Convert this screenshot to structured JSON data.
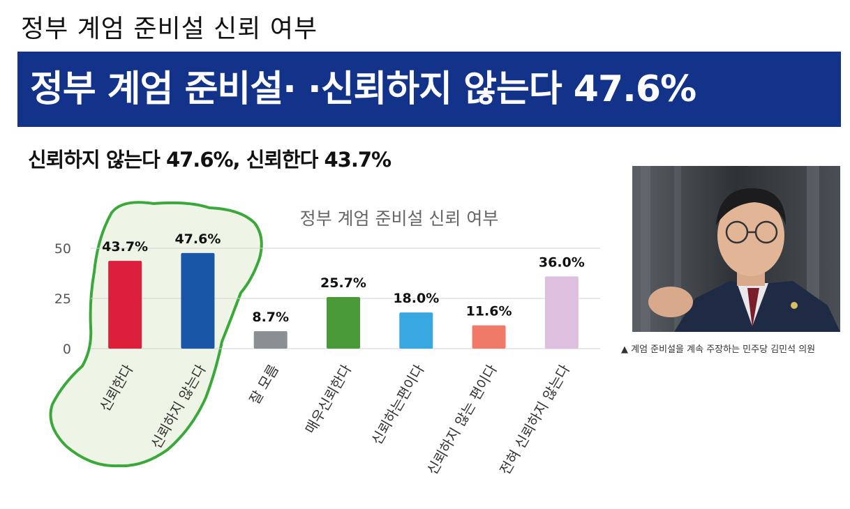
{
  "header": {
    "kicker": "정부 계엄 준비설 신뢰 여부",
    "banner": "정부 계엄 준비설· ·신뢰하지 않는다 47.6%",
    "subhead": "신뢰하지 않는다 47.6%, 신뢰한다 43.7%"
  },
  "photo": {
    "caption": "▲ 계엄 준비설을 계속 주장하는 민주당 김민석 의원"
  },
  "chart_data": {
    "type": "bar",
    "title": "정부 계엄 준비설  신뢰 여부",
    "categories": [
      "신뢰한다",
      "신뢰하지 않는다",
      "잘 모름",
      "매우신뢰한다",
      "신뢰하는편이다",
      "신뢰하지 않는 편이다",
      "전혀 신뢰하지 않는다"
    ],
    "values": [
      43.7,
      47.6,
      8.7,
      25.7,
      18.0,
      11.6,
      36.0
    ],
    "data_labels": [
      "43.7%",
      "47.6%",
      "8.7%",
      "25.7%",
      "18.0%",
      "11.6%",
      "36.0%"
    ],
    "colors": [
      "#dc1f3a",
      "#1a56a8",
      "#8a8f94",
      "#4a9a3a",
      "#3aa8e0",
      "#f07a68",
      "#ddc0e0"
    ],
    "ylim": [
      0,
      50
    ],
    "yticks": [
      "0",
      "25",
      "50"
    ],
    "ytick_values": [
      0,
      25,
      50
    ],
    "grid": true,
    "highlight_color": "#3aa83a"
  }
}
